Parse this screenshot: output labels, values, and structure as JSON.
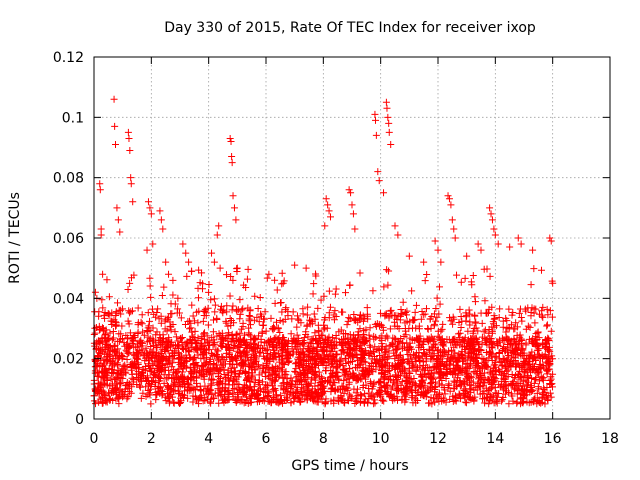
{
  "chart_data": {
    "type": "scatter",
    "title": "Day 330 of 2015, Rate Of TEC Index for receiver ixop",
    "xlabel": "GPS time / hours",
    "ylabel": "ROTI / TECUs",
    "xlim": [
      0,
      18
    ],
    "ylim": [
      0,
      0.12
    ],
    "xticks": [
      0,
      2,
      4,
      6,
      8,
      10,
      12,
      14,
      16,
      18
    ],
    "yticks": [
      0,
      0.02,
      0.04,
      0.06,
      0.08,
      0.1,
      0.12
    ],
    "xtick_labels": [
      "0",
      "2",
      "4",
      "6",
      "8",
      "10",
      "12",
      "14",
      "16",
      "18"
    ],
    "ytick_labels": [
      "0",
      "0.02",
      "0.04",
      "0.06",
      "0.08",
      "0.1",
      "0.12"
    ],
    "grid": true,
    "marker": "+",
    "color": "#ff0000",
    "x_range_observed": [
      0,
      16
    ],
    "series": [
      {
        "name": "ROTI",
        "points": [
          [
            0.2,
            0.078
          ],
          [
            0.22,
            0.076
          ],
          [
            0.25,
            0.063
          ],
          [
            0.25,
            0.061
          ],
          [
            0.3,
            0.048
          ],
          [
            0.05,
            0.042
          ],
          [
            0.1,
            0.04
          ],
          [
            0.7,
            0.106
          ],
          [
            0.72,
            0.097
          ],
          [
            0.75,
            0.091
          ],
          [
            0.8,
            0.07
          ],
          [
            0.85,
            0.066
          ],
          [
            0.9,
            0.062
          ],
          [
            1.2,
            0.095
          ],
          [
            1.22,
            0.093
          ],
          [
            1.25,
            0.089
          ],
          [
            1.28,
            0.08
          ],
          [
            1.3,
            0.078
          ],
          [
            1.35,
            0.072
          ],
          [
            1.9,
            0.072
          ],
          [
            1.95,
            0.07
          ],
          [
            2.0,
            0.068
          ],
          [
            2.05,
            0.058
          ],
          [
            1.85,
            0.056
          ],
          [
            2.3,
            0.069
          ],
          [
            2.35,
            0.066
          ],
          [
            2.4,
            0.063
          ],
          [
            2.5,
            0.052
          ],
          [
            2.6,
            0.048
          ],
          [
            3.1,
            0.058
          ],
          [
            3.2,
            0.055
          ],
          [
            3.3,
            0.052
          ],
          [
            3.4,
            0.049
          ],
          [
            4.1,
            0.055
          ],
          [
            4.2,
            0.052
          ],
          [
            4.3,
            0.061
          ],
          [
            4.35,
            0.064
          ],
          [
            4.4,
            0.05
          ],
          [
            4.75,
            0.093
          ],
          [
            4.78,
            0.092
          ],
          [
            4.8,
            0.087
          ],
          [
            4.82,
            0.085
          ],
          [
            4.85,
            0.074
          ],
          [
            4.9,
            0.07
          ],
          [
            4.95,
            0.066
          ],
          [
            5.0,
            0.05
          ],
          [
            6.1,
            0.048
          ],
          [
            6.3,
            0.046
          ],
          [
            6.6,
            0.045
          ],
          [
            7.0,
            0.051
          ],
          [
            7.4,
            0.05
          ],
          [
            8.1,
            0.073
          ],
          [
            8.15,
            0.071
          ],
          [
            8.2,
            0.069
          ],
          [
            8.25,
            0.067
          ],
          [
            8.05,
            0.064
          ],
          [
            8.9,
            0.076
          ],
          [
            8.95,
            0.075
          ],
          [
            9.0,
            0.071
          ],
          [
            9.05,
            0.068
          ],
          [
            9.1,
            0.063
          ],
          [
            9.8,
            0.101
          ],
          [
            9.82,
            0.099
          ],
          [
            9.85,
            0.094
          ],
          [
            9.9,
            0.082
          ],
          [
            9.95,
            0.079
          ],
          [
            10.2,
            0.105
          ],
          [
            10.22,
            0.103
          ],
          [
            10.25,
            0.1
          ],
          [
            10.28,
            0.098
          ],
          [
            10.3,
            0.095
          ],
          [
            10.35,
            0.091
          ],
          [
            10.1,
            0.075
          ],
          [
            10.5,
            0.064
          ],
          [
            10.6,
            0.061
          ],
          [
            11.0,
            0.054
          ],
          [
            11.5,
            0.052
          ],
          [
            11.9,
            0.059
          ],
          [
            12.0,
            0.056
          ],
          [
            12.1,
            0.052
          ],
          [
            12.35,
            0.074
          ],
          [
            12.4,
            0.073
          ],
          [
            12.45,
            0.071
          ],
          [
            12.5,
            0.066
          ],
          [
            12.55,
            0.063
          ],
          [
            12.6,
            0.06
          ],
          [
            13.0,
            0.054
          ],
          [
            13.4,
            0.058
          ],
          [
            13.5,
            0.056
          ],
          [
            13.8,
            0.07
          ],
          [
            13.85,
            0.068
          ],
          [
            13.9,
            0.066
          ],
          [
            13.95,
            0.063
          ],
          [
            14.0,
            0.061
          ],
          [
            14.1,
            0.058
          ],
          [
            14.5,
            0.057
          ],
          [
            14.8,
            0.06
          ],
          [
            14.9,
            0.058
          ],
          [
            15.3,
            0.056
          ],
          [
            15.9,
            0.06
          ],
          [
            15.95,
            0.059
          ],
          [
            16.0,
            0.045
          ]
        ]
      }
    ]
  }
}
